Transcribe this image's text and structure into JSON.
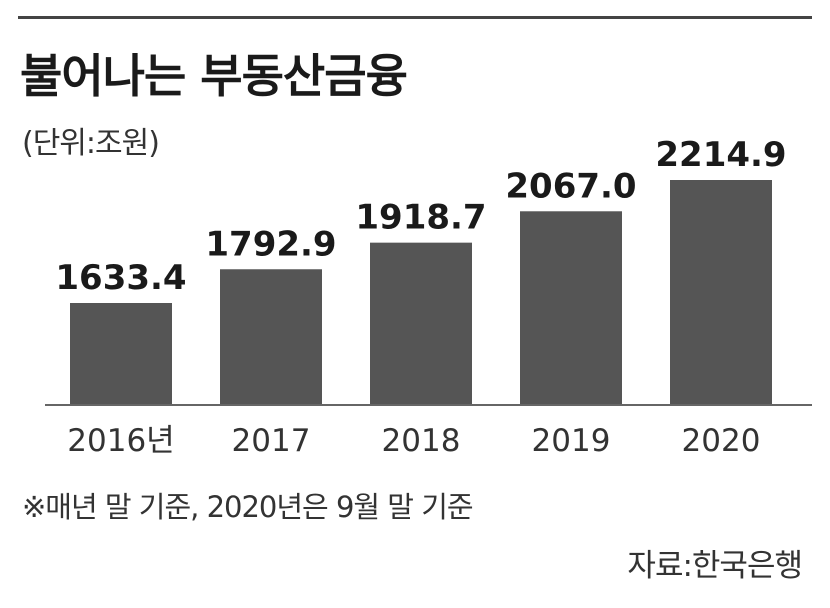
{
  "chart_data": {
    "type": "bar",
    "title": "불어나는 부동산금융",
    "unit_label": "(단위:조원)",
    "categories": [
      "2016년",
      "2017",
      "2018",
      "2019",
      "2020"
    ],
    "values": [
      1633.4,
      1792.9,
      1918.7,
      2067.0,
      2214.9
    ],
    "value_labels": [
      "1633.4",
      "1792.9",
      "1918.7",
      "2067.0",
      "2214.9"
    ],
    "xlabel": "",
    "ylabel": "",
    "grid": false,
    "bar_color": "#555555",
    "footnote": "※매년 말 기준, 2020년은 9월 말 기준",
    "source": "자료:한국은행"
  },
  "colors": {
    "bar": "#555555",
    "rule": "#444444",
    "text": "#1a1a1a"
  }
}
